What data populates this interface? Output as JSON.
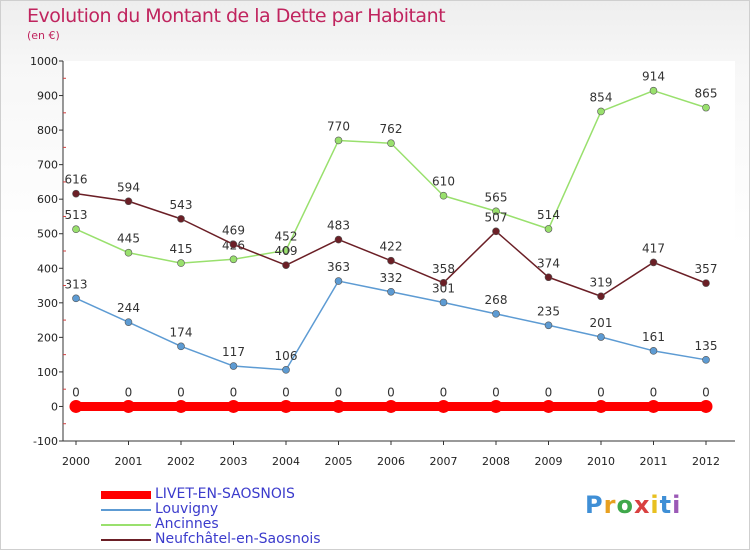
{
  "title": "Evolution du Montant de la Dette par Habitant",
  "subtitle": "(en €)",
  "logo": "Proxiti",
  "chart_data": {
    "type": "line",
    "x": [
      "2000",
      "2001",
      "2002",
      "2003",
      "2004",
      "2005",
      "2006",
      "2007",
      "2008",
      "2009",
      "2010",
      "2011",
      "2012"
    ],
    "ylim": [
      -100,
      1000
    ],
    "yticks": [
      -100,
      0,
      100,
      200,
      300,
      400,
      500,
      600,
      700,
      800,
      900,
      1000
    ],
    "grid": false,
    "legend_position": "bottom-left",
    "series": [
      {
        "name": "LIVET-EN-SAOSNOIS",
        "color": "#ff0000",
        "values": [
          0,
          0,
          0,
          0,
          0,
          0,
          0,
          0,
          0,
          0,
          0,
          0,
          0
        ]
      },
      {
        "name": "Louvigny",
        "color": "#5d9bd3",
        "values": [
          313,
          244,
          174,
          117,
          106,
          363,
          332,
          301,
          268,
          235,
          201,
          161,
          135
        ]
      },
      {
        "name": "Ancinnes",
        "color": "#99e06d",
        "values": [
          513,
          445,
          415,
          426,
          452,
          770,
          762,
          610,
          565,
          514,
          854,
          914,
          865
        ]
      },
      {
        "name": "Neufchâtel-en-Saosnois",
        "color": "#6b1f26",
        "values": [
          616,
          594,
          543,
          469,
          409,
          483,
          422,
          358,
          507,
          374,
          319,
          417,
          357
        ]
      }
    ]
  }
}
